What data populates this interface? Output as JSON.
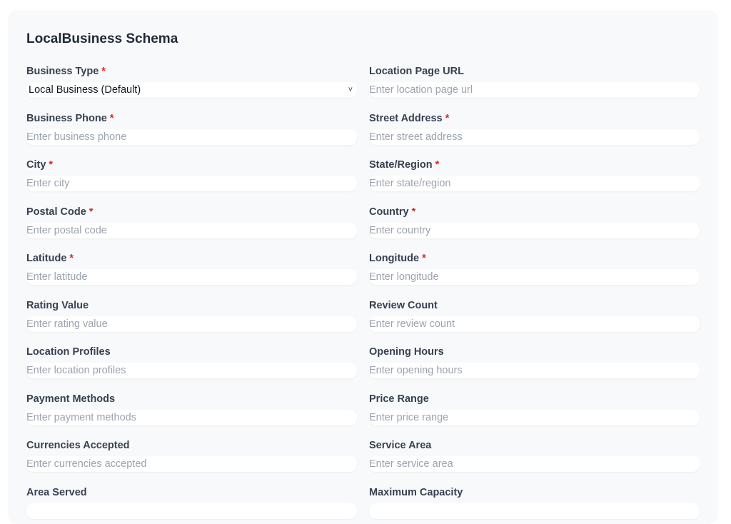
{
  "title": "LocalBusiness Schema",
  "fields": [
    {
      "label": "Business Type",
      "required": true,
      "type": "select",
      "value": "Local Business (Default)"
    },
    {
      "label": "Location Page URL",
      "required": false,
      "placeholder": "Enter location page url"
    },
    {
      "label": "Business Phone",
      "required": true,
      "placeholder": "Enter business phone"
    },
    {
      "label": "Street Address",
      "required": true,
      "placeholder": "Enter street address"
    },
    {
      "label": "City",
      "required": true,
      "placeholder": "Enter city"
    },
    {
      "label": "State/Region",
      "required": true,
      "placeholder": "Enter state/region"
    },
    {
      "label": "Postal Code",
      "required": true,
      "placeholder": "Enter postal code"
    },
    {
      "label": "Country",
      "required": true,
      "placeholder": "Enter country"
    },
    {
      "label": "Latitude",
      "required": true,
      "placeholder": "Enter latitude"
    },
    {
      "label": "Longitude",
      "required": true,
      "placeholder": "Enter longitude"
    },
    {
      "label": "Rating Value",
      "required": false,
      "placeholder": "Enter rating value"
    },
    {
      "label": "Review Count",
      "required": false,
      "placeholder": "Enter review count"
    },
    {
      "label": "Location Profiles",
      "required": false,
      "placeholder": "Enter location profiles"
    },
    {
      "label": "Opening Hours",
      "required": false,
      "placeholder": "Enter opening hours"
    },
    {
      "label": "Payment Methods",
      "required": false,
      "placeholder": "Enter payment methods"
    },
    {
      "label": "Price Range",
      "required": false,
      "placeholder": "Enter price range"
    },
    {
      "label": "Currencies Accepted",
      "required": false,
      "placeholder": "Enter currencies accepted"
    },
    {
      "label": "Service Area",
      "required": false,
      "placeholder": "Enter service area"
    },
    {
      "label": "Area Served",
      "required": false,
      "placeholder": ""
    },
    {
      "label": "Maximum Capacity",
      "required": false,
      "placeholder": ""
    }
  ],
  "required_marker": "*",
  "icons": {
    "select_chevron": "chevron-down-icon"
  },
  "colors": {
    "required": "#dc2626",
    "card_bg": "#f8f9fb"
  }
}
